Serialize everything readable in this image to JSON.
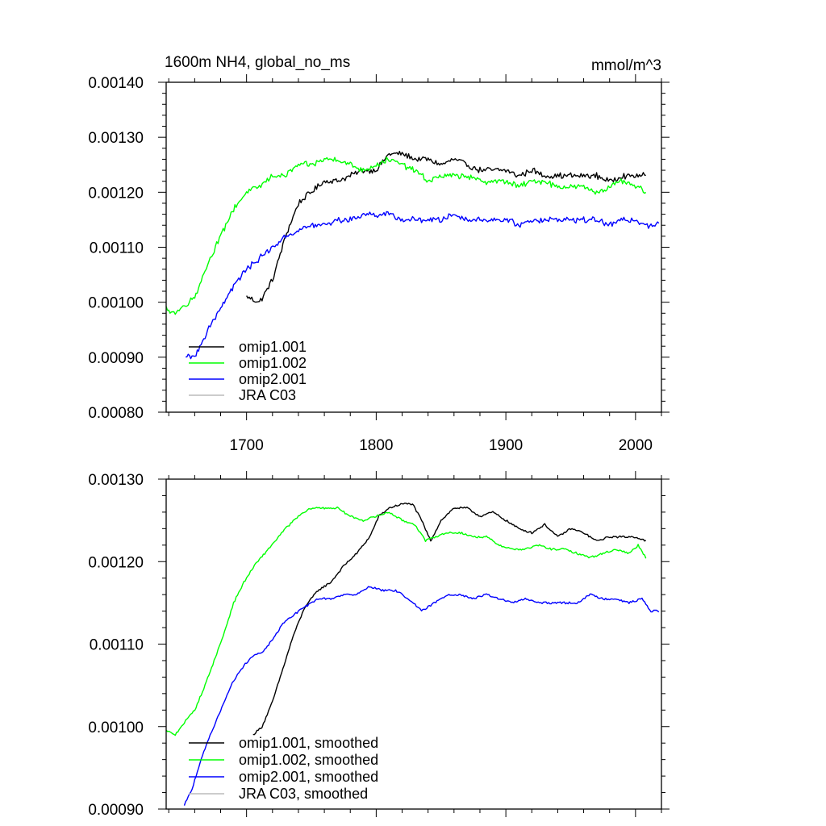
{
  "figure": {
    "title_left": "1600m NH4, global_no_ms",
    "title_right": "mmol/m^3"
  },
  "chart_data": [
    {
      "type": "line",
      "title": "1600m NH4, global_no_ms",
      "units": "mmol/m^3",
      "xlabel": "",
      "ylabel": "",
      "xlim": [
        1638,
        2020
      ],
      "ylim": [
        0.0008,
        0.0014
      ],
      "x_ticks": [
        1700,
        1800,
        1900,
        2000
      ],
      "x_tick_labels": [
        "1700",
        "1800",
        "1900",
        "2000"
      ],
      "y_ticks": [
        0.0008,
        0.0009,
        0.001,
        0.0011,
        0.0012,
        0.0013,
        0.0014
      ],
      "y_tick_labels": [
        "0.00080",
        "0.00090",
        "0.00100",
        "0.00110",
        "0.00120",
        "0.00130",
        "0.00140"
      ],
      "grid": false,
      "legend_position": "bottom-left",
      "series": [
        {
          "name": "omip1.001",
          "color": "#000000",
          "points": [
            [
              1700,
              0.00101
            ],
            [
              1710,
              0.001
            ],
            [
              1720,
              0.00104
            ],
            [
              1730,
              0.00112
            ],
            [
              1740,
              0.00118
            ],
            [
              1750,
              0.0012
            ],
            [
              1760,
              0.00122
            ],
            [
              1770,
              0.00122
            ],
            [
              1780,
              0.00123
            ],
            [
              1790,
              0.00124
            ],
            [
              1800,
              0.00124
            ],
            [
              1810,
              0.00127
            ],
            [
              1820,
              0.00127
            ],
            [
              1830,
              0.00126
            ],
            [
              1840,
              0.00126
            ],
            [
              1850,
              0.00125
            ],
            [
              1860,
              0.00126
            ],
            [
              1870,
              0.00125
            ],
            [
              1880,
              0.00124
            ],
            [
              1890,
              0.00124
            ],
            [
              1900,
              0.00124
            ],
            [
              1910,
              0.00123
            ],
            [
              1920,
              0.00124
            ],
            [
              1930,
              0.00123
            ],
            [
              1940,
              0.00123
            ],
            [
              1950,
              0.00123
            ],
            [
              1960,
              0.00123
            ],
            [
              1970,
              0.00123
            ],
            [
              1980,
              0.00122
            ],
            [
              1990,
              0.00123
            ],
            [
              2000,
              0.00123
            ],
            [
              2008,
              0.00123
            ]
          ]
        },
        {
          "name": "omip1.002",
          "color": "#00ff00",
          "points": [
            [
              1638,
              0.00099
            ],
            [
              1645,
              0.00098
            ],
            [
              1650,
              0.00099
            ],
            [
              1660,
              0.00101
            ],
            [
              1670,
              0.00107
            ],
            [
              1680,
              0.00112
            ],
            [
              1690,
              0.00117
            ],
            [
              1700,
              0.0012
            ],
            [
              1710,
              0.00121
            ],
            [
              1720,
              0.00123
            ],
            [
              1730,
              0.00123
            ],
            [
              1740,
              0.00125
            ],
            [
              1750,
              0.00125
            ],
            [
              1760,
              0.00126
            ],
            [
              1770,
              0.00126
            ],
            [
              1780,
              0.00125
            ],
            [
              1790,
              0.00124
            ],
            [
              1800,
              0.00125
            ],
            [
              1810,
              0.00126
            ],
            [
              1820,
              0.00125
            ],
            [
              1830,
              0.00124
            ],
            [
              1840,
              0.00122
            ],
            [
              1850,
              0.00123
            ],
            [
              1860,
              0.00123
            ],
            [
              1870,
              0.00123
            ],
            [
              1880,
              0.00122
            ],
            [
              1890,
              0.00122
            ],
            [
              1900,
              0.00122
            ],
            [
              1910,
              0.00121
            ],
            [
              1920,
              0.00122
            ],
            [
              1930,
              0.00122
            ],
            [
              1940,
              0.00121
            ],
            [
              1950,
              0.00121
            ],
            [
              1960,
              0.00121
            ],
            [
              1970,
              0.0012
            ],
            [
              1980,
              0.00121
            ],
            [
              1990,
              0.00122
            ],
            [
              2000,
              0.00121
            ],
            [
              2008,
              0.0012
            ]
          ]
        },
        {
          "name": "omip2.001",
          "color": "#0000ff",
          "points": [
            [
              1653,
              0.0009
            ],
            [
              1660,
              0.0009
            ],
            [
              1670,
              0.00095
            ],
            [
              1680,
              0.00099
            ],
            [
              1690,
              0.00103
            ],
            [
              1700,
              0.00106
            ],
            [
              1710,
              0.00108
            ],
            [
              1720,
              0.0011
            ],
            [
              1730,
              0.00112
            ],
            [
              1740,
              0.00113
            ],
            [
              1750,
              0.00114
            ],
            [
              1760,
              0.00114
            ],
            [
              1770,
              0.00115
            ],
            [
              1780,
              0.00115
            ],
            [
              1790,
              0.00116
            ],
            [
              1800,
              0.00116
            ],
            [
              1810,
              0.00116
            ],
            [
              1820,
              0.00115
            ],
            [
              1830,
              0.00115
            ],
            [
              1840,
              0.00115
            ],
            [
              1850,
              0.00115
            ],
            [
              1860,
              0.00116
            ],
            [
              1870,
              0.00115
            ],
            [
              1880,
              0.00115
            ],
            [
              1890,
              0.00115
            ],
            [
              1900,
              0.00115
            ],
            [
              1910,
              0.00114
            ],
            [
              1920,
              0.00115
            ],
            [
              1930,
              0.00115
            ],
            [
              1940,
              0.00115
            ],
            [
              1950,
              0.00115
            ],
            [
              1960,
              0.00115
            ],
            [
              1970,
              0.00115
            ],
            [
              1980,
              0.00114
            ],
            [
              1990,
              0.00115
            ],
            [
              2000,
              0.00115
            ],
            [
              2010,
              0.00114
            ],
            [
              2018,
              0.00114
            ]
          ]
        },
        {
          "name": "JRA C03",
          "color": "#bbbbbb",
          "points": []
        }
      ]
    },
    {
      "type": "line",
      "title": "",
      "xlabel": "",
      "ylabel": "",
      "xlim": [
        1638,
        2020
      ],
      "ylim": [
        0.0009,
        0.0013
      ],
      "x_ticks": [
        1700,
        1800,
        1900,
        2000
      ],
      "x_tick_labels": [],
      "y_ticks": [
        0.0009,
        0.001,
        0.0011,
        0.0012,
        0.0013
      ],
      "y_tick_labels": [
        "0.00090",
        "0.00100",
        "0.00110",
        "0.00120",
        "0.00130"
      ],
      "grid": false,
      "legend_position": "bottom-left",
      "series": [
        {
          "name": "omip1.001, smoothed",
          "color": "#000000",
          "points": [
            [
              1705,
              0.00099
            ],
            [
              1712,
              0.001
            ],
            [
              1720,
              0.00103
            ],
            [
              1728,
              0.00107
            ],
            [
              1736,
              0.00111
            ],
            [
              1745,
              0.001145
            ],
            [
              1755,
              0.001165
            ],
            [
              1765,
              0.001175
            ],
            [
              1775,
              0.001195
            ],
            [
              1785,
              0.00121
            ],
            [
              1795,
              0.00123
            ],
            [
              1802,
              0.001255
            ],
            [
              1810,
              0.001265
            ],
            [
              1820,
              0.00127
            ],
            [
              1828,
              0.00127
            ],
            [
              1835,
              0.00125
            ],
            [
              1842,
              0.001225
            ],
            [
              1850,
              0.00125
            ],
            [
              1860,
              0.001265
            ],
            [
              1870,
              0.001265
            ],
            [
              1880,
              0.001255
            ],
            [
              1890,
              0.00126
            ],
            [
              1900,
              0.00125
            ],
            [
              1910,
              0.00124
            ],
            [
              1920,
              0.001235
            ],
            [
              1930,
              0.001245
            ],
            [
              1940,
              0.00123
            ],
            [
              1950,
              0.00124
            ],
            [
              1960,
              0.001235
            ],
            [
              1970,
              0.001225
            ],
            [
              1980,
              0.00123
            ],
            [
              1990,
              0.00123
            ],
            [
              2000,
              0.00123
            ],
            [
              2008,
              0.001225
            ]
          ]
        },
        {
          "name": "omip1.002, smoothed",
          "color": "#00ff00",
          "points": [
            [
              1638,
              0.000995
            ],
            [
              1645,
              0.00099
            ],
            [
              1652,
              0.001005
            ],
            [
              1660,
              0.00102
            ],
            [
              1668,
              0.00105
            ],
            [
              1675,
              0.00108
            ],
            [
              1682,
              0.00111
            ],
            [
              1690,
              0.00115
            ],
            [
              1698,
              0.001175
            ],
            [
              1706,
              0.001195
            ],
            [
              1714,
              0.00121
            ],
            [
              1722,
              0.001225
            ],
            [
              1730,
              0.00124
            ],
            [
              1740,
              0.001255
            ],
            [
              1750,
              0.001265
            ],
            [
              1760,
              0.001265
            ],
            [
              1770,
              0.001265
            ],
            [
              1780,
              0.001255
            ],
            [
              1790,
              0.00125
            ],
            [
              1800,
              0.001255
            ],
            [
              1810,
              0.00126
            ],
            [
              1820,
              0.00125
            ],
            [
              1830,
              0.001245
            ],
            [
              1838,
              0.001225
            ],
            [
              1845,
              0.00123
            ],
            [
              1855,
              0.001235
            ],
            [
              1865,
              0.001235
            ],
            [
              1875,
              0.00123
            ],
            [
              1885,
              0.00123
            ],
            [
              1895,
              0.00122
            ],
            [
              1905,
              0.001215
            ],
            [
              1915,
              0.001215
            ],
            [
              1925,
              0.00122
            ],
            [
              1935,
              0.001215
            ],
            [
              1945,
              0.001215
            ],
            [
              1955,
              0.00121
            ],
            [
              1965,
              0.001205
            ],
            [
              1975,
              0.00121
            ],
            [
              1985,
              0.001215
            ],
            [
              1995,
              0.00121
            ],
            [
              2002,
              0.00122
            ],
            [
              2008,
              0.001205
            ]
          ]
        },
        {
          "name": "omip2.001, smoothed",
          "color": "#0000ff",
          "points": [
            [
              1652,
              0.000905
            ],
            [
              1658,
              0.000925
            ],
            [
              1665,
              0.00096
            ],
            [
              1672,
              0.00099
            ],
            [
              1680,
              0.00102
            ],
            [
              1688,
              0.00105
            ],
            [
              1696,
              0.00107
            ],
            [
              1704,
              0.001085
            ],
            [
              1712,
              0.00109
            ],
            [
              1720,
              0.001105
            ],
            [
              1728,
              0.001125
            ],
            [
              1736,
              0.001135
            ],
            [
              1745,
              0.001145
            ],
            [
              1755,
              0.001155
            ],
            [
              1765,
              0.001155
            ],
            [
              1775,
              0.00116
            ],
            [
              1785,
              0.00116
            ],
            [
              1795,
              0.00117
            ],
            [
              1805,
              0.001165
            ],
            [
              1815,
              0.001165
            ],
            [
              1825,
              0.001155
            ],
            [
              1835,
              0.00114
            ],
            [
              1845,
              0.00115
            ],
            [
              1855,
              0.00116
            ],
            [
              1865,
              0.00116
            ],
            [
              1875,
              0.001155
            ],
            [
              1885,
              0.00116
            ],
            [
              1895,
              0.001155
            ],
            [
              1905,
              0.00115
            ],
            [
              1915,
              0.001155
            ],
            [
              1925,
              0.00115
            ],
            [
              1935,
              0.00115
            ],
            [
              1945,
              0.00115
            ],
            [
              1955,
              0.00115
            ],
            [
              1965,
              0.00116
            ],
            [
              1975,
              0.001155
            ],
            [
              1985,
              0.001155
            ],
            [
              1995,
              0.00115
            ],
            [
              2005,
              0.001155
            ],
            [
              2012,
              0.00114
            ],
            [
              2018,
              0.00114
            ]
          ]
        },
        {
          "name": "JRA C03, smoothed",
          "color": "#bbbbbb",
          "points": []
        }
      ]
    }
  ]
}
